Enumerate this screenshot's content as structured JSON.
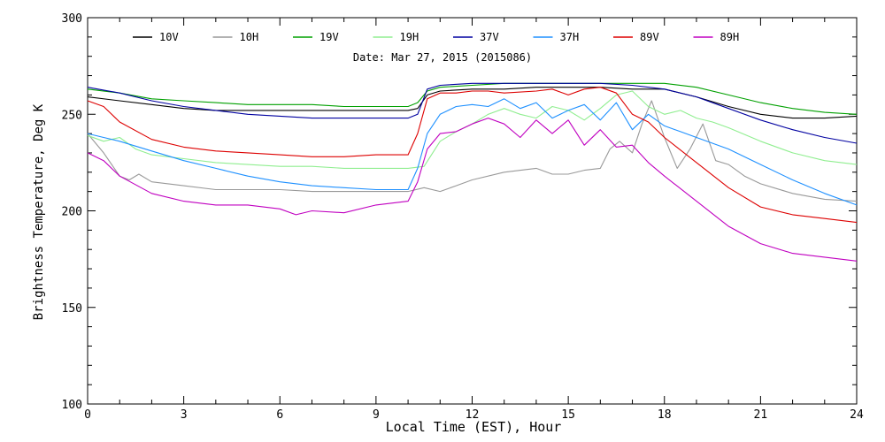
{
  "chart_data": {
    "type": "line",
    "annotation": "Date: Mar 27, 2015 (2015086)",
    "xlabel": "Local Time (EST), Hour",
    "ylabel": "Brightness Temperature, Deg K",
    "xlim": [
      0,
      24
    ],
    "ylim": [
      100,
      300
    ],
    "xticks": [
      0,
      3,
      6,
      9,
      12,
      15,
      18,
      21,
      24
    ],
    "yticks": [
      100,
      150,
      200,
      250,
      300
    ],
    "grid": false,
    "legend_position": "top",
    "series": [
      {
        "name": "10V",
        "color": "#000000",
        "x": [
          0,
          1,
          2,
          3,
          4,
          5,
          6,
          7,
          8,
          9,
          10,
          10.3,
          10.6,
          11,
          12,
          13,
          14,
          15,
          16,
          17,
          18,
          19,
          20,
          21,
          22,
          23,
          24
        ],
        "y": [
          259,
          257,
          255,
          253,
          252,
          252,
          252,
          252,
          252,
          252,
          252,
          253,
          260,
          262,
          263,
          263,
          264,
          264,
          264,
          263,
          263,
          259,
          254,
          250,
          248,
          248,
          249
        ]
      },
      {
        "name": "10H",
        "color": "#999999",
        "x": [
          0,
          0.5,
          1,
          1.3,
          1.6,
          2,
          3,
          4,
          5,
          6,
          7,
          8,
          9,
          10,
          10.5,
          11,
          11.5,
          12,
          13,
          14,
          14.5,
          15,
          15.5,
          16,
          16.3,
          16.6,
          17,
          17.3,
          17.6,
          18,
          18.4,
          18.8,
          19.2,
          19.6,
          20,
          20.5,
          21,
          22,
          23,
          24
        ],
        "y": [
          240,
          230,
          218,
          216,
          219,
          215,
          213,
          211,
          211,
          211,
          210,
          210,
          210,
          210,
          212,
          210,
          213,
          216,
          220,
          222,
          219,
          219,
          221,
          222,
          232,
          236,
          230,
          245,
          257,
          238,
          222,
          232,
          245,
          226,
          224,
          218,
          214,
          209,
          206,
          205
        ]
      },
      {
        "name": "19V",
        "color": "#00a000",
        "x": [
          0,
          1,
          2,
          3,
          4,
          5,
          6,
          7,
          8,
          9,
          10,
          10.3,
          10.6,
          11,
          12,
          13,
          14,
          15,
          16,
          17,
          18,
          19,
          20,
          21,
          22,
          23,
          24
        ],
        "y": [
          263,
          261,
          258,
          257,
          256,
          255,
          255,
          255,
          254,
          254,
          254,
          256,
          262,
          264,
          265,
          266,
          266,
          266,
          266,
          266,
          266,
          264,
          260,
          256,
          253,
          251,
          250
        ]
      },
      {
        "name": "19H",
        "color": "#90ee90",
        "x": [
          0,
          0.5,
          1,
          1.5,
          2,
          3,
          4,
          5,
          6,
          7,
          8,
          9,
          10,
          10.5,
          11,
          11.5,
          12,
          12.5,
          13,
          13.5,
          14,
          14.5,
          15,
          15.5,
          16,
          16.5,
          17,
          17.5,
          18,
          18.5,
          19,
          19.5,
          20,
          21,
          22,
          23,
          24
        ],
        "y": [
          239,
          236,
          238,
          232,
          229,
          227,
          225,
          224,
          223,
          223,
          222,
          222,
          222,
          223,
          236,
          241,
          245,
          250,
          253,
          250,
          248,
          254,
          252,
          247,
          253,
          260,
          262,
          254,
          250,
          252,
          248,
          246,
          243,
          236,
          230,
          226,
          224
        ]
      },
      {
        "name": "37V",
        "color": "#0000a0",
        "x": [
          0,
          1,
          2,
          3,
          4,
          5,
          6,
          7,
          8,
          9,
          10,
          10.3,
          10.6,
          11,
          12,
          13,
          14,
          15,
          16,
          17,
          18,
          19,
          20,
          21,
          22,
          23,
          24
        ],
        "y": [
          264,
          261,
          257,
          254,
          252,
          250,
          249,
          248,
          248,
          248,
          248,
          250,
          263,
          265,
          266,
          266,
          266,
          266,
          266,
          265,
          263,
          259,
          253,
          247,
          242,
          238,
          235
        ]
      },
      {
        "name": "37H",
        "color": "#1e90ff",
        "x": [
          0,
          0.5,
          1,
          2,
          3,
          4,
          5,
          6,
          7,
          8,
          9,
          10,
          10.3,
          10.6,
          11,
          11.5,
          12,
          12.5,
          13,
          13.5,
          14,
          14.5,
          15,
          15.5,
          16,
          16.5,
          17,
          17.5,
          18,
          18.5,
          19,
          20,
          21,
          22,
          23,
          24
        ],
        "y": [
          240,
          238,
          236,
          231,
          226,
          222,
          218,
          215,
          213,
          212,
          211,
          211,
          222,
          240,
          250,
          254,
          255,
          254,
          258,
          253,
          256,
          248,
          252,
          255,
          247,
          256,
          242,
          250,
          244,
          241,
          238,
          232,
          224,
          216,
          209,
          203
        ]
      },
      {
        "name": "89V",
        "color": "#dd0000",
        "x": [
          0,
          0.5,
          1,
          2,
          3,
          4,
          5,
          6,
          7,
          8,
          9,
          10,
          10.3,
          10.6,
          11,
          11.5,
          12,
          12.5,
          13,
          14,
          14.5,
          15,
          15.5,
          16,
          16.5,
          17,
          17.5,
          18,
          19,
          20,
          21,
          22,
          23,
          24
        ],
        "y": [
          257,
          254,
          246,
          237,
          233,
          231,
          230,
          229,
          228,
          228,
          229,
          229,
          240,
          258,
          261,
          261,
          262,
          262,
          261,
          262,
          263,
          260,
          263,
          264,
          261,
          250,
          246,
          238,
          225,
          212,
          202,
          198,
          196,
          194
        ]
      },
      {
        "name": "89H",
        "color": "#c000c0",
        "x": [
          0,
          0.5,
          1,
          2,
          3,
          4,
          5,
          6,
          6.5,
          7,
          8,
          9,
          10,
          10.3,
          10.6,
          11,
          11.5,
          12,
          12.5,
          13,
          13.5,
          14,
          14.5,
          15,
          15.5,
          16,
          16.5,
          17,
          17.5,
          18,
          19,
          20,
          21,
          22,
          23,
          24
        ],
        "y": [
          230,
          226,
          218,
          209,
          205,
          203,
          203,
          201,
          198,
          200,
          199,
          203,
          205,
          215,
          232,
          240,
          241,
          245,
          248,
          245,
          238,
          247,
          240,
          247,
          234,
          242,
          233,
          234,
          225,
          218,
          205,
          192,
          183,
          178,
          176,
          174
        ]
      }
    ]
  }
}
